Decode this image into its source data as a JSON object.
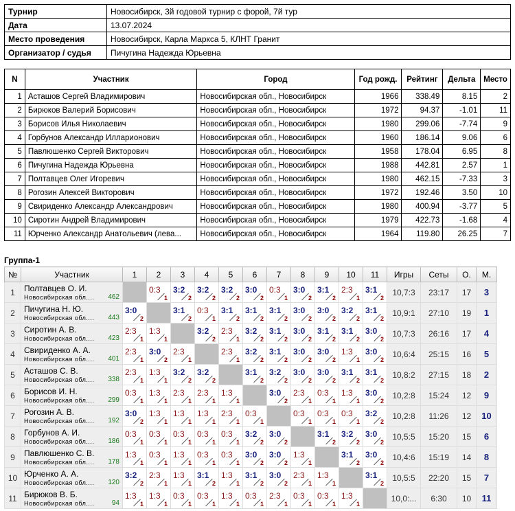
{
  "info": [
    {
      "label": "Турнир",
      "value": "Новосибирск, 3й годовой турнир с форой, 7й тур"
    },
    {
      "label": "Дата",
      "value": "13.07.2024"
    },
    {
      "label": "Место проведения",
      "value": "Новосибирск, Карла Маркса 5, КЛНТ Гранит"
    },
    {
      "label": "Организатор / судья",
      "value": "Пичугина Надежда Юрьевна"
    }
  ],
  "participants": {
    "headers": [
      "N",
      "Участник",
      "Город",
      "Год рожд.",
      "Рейтинг",
      "Дельта",
      "Место"
    ],
    "rows": [
      [
        "1",
        "Асташов Сергей Владимирович",
        "Новосибирская обл., Новосибирск",
        "1966",
        "338.49",
        "8.15",
        "2"
      ],
      [
        "2",
        "Бирюков Валерий Борисович",
        "Новосибирская обл., Новосибирск",
        "1972",
        "94.37",
        "-1.01",
        "11"
      ],
      [
        "3",
        "Борисов Илья Николаевич",
        "Новосибирская обл., Новосибирск",
        "1980",
        "299.06",
        "-7.74",
        "9"
      ],
      [
        "4",
        "Горбунов Александр Илларионович",
        "Новосибирская обл., Новосибирск",
        "1960",
        "186.14",
        "9.06",
        "6"
      ],
      [
        "5",
        "Павлюшенко Сергей Викторович",
        "Новосибирская обл., Новосибирск",
        "1958",
        "178.04",
        "6.95",
        "8"
      ],
      [
        "6",
        "Пичугина Надежда Юрьевна",
        "Новосибирская обл., Новосибирск",
        "1988",
        "442.81",
        "2.57",
        "1"
      ],
      [
        "7",
        "Полтавцев Олег Игоревич",
        "Новосибирская обл., Новосибирск",
        "1980",
        "462.15",
        "-7.33",
        "3"
      ],
      [
        "8",
        "Рогозин Алексей Викторович",
        "Новосибирская обл., Новосибирск",
        "1972",
        "192.46",
        "3.50",
        "10"
      ],
      [
        "9",
        "Свириденко Александр Александрович",
        "Новосибирская обл., Новосибирск",
        "1980",
        "400.94",
        "-3.77",
        "5"
      ],
      [
        "10",
        "Сиротин Андрей Владимирович",
        "Новосибирская обл., Новосибирск",
        "1979",
        "422.73",
        "-1.68",
        "4"
      ],
      [
        "11",
        "Юрченко Александр Анатольевич (лева...",
        "Новосибирская обл., Новосибирск",
        "1964",
        "119.80",
        "26.25",
        "7"
      ]
    ]
  },
  "group": {
    "title": "Группа-1",
    "headers": [
      "№",
      "Участник",
      "1",
      "2",
      "3",
      "4",
      "5",
      "6",
      "7",
      "8",
      "9",
      "10",
      "11",
      "Игры",
      "Сеты",
      "О.",
      "М."
    ],
    "rows": [
      {
        "n": "1",
        "name": "Полтавцев О. И.",
        "region": "Новосибирская обл....",
        "rating": "462",
        "res": [
          null,
          [
            "0:3",
            "1"
          ],
          [
            "3:2",
            "2"
          ],
          [
            "3:2",
            "2"
          ],
          [
            "3:2",
            "2"
          ],
          [
            "3:0",
            "2"
          ],
          [
            "0:3",
            "1"
          ],
          [
            "3:0",
            "2"
          ],
          [
            "3:1",
            "2"
          ],
          [
            "2:3",
            "1"
          ],
          [
            "3:1",
            "2"
          ]
        ],
        "games": "10,7:3",
        "sets": "23:17",
        "pts": "17",
        "place": "3"
      },
      {
        "n": "2",
        "name": "Пичугина Н. Ю.",
        "region": "Новосибирская обл....",
        "rating": "443",
        "res": [
          [
            "3:0",
            "2"
          ],
          null,
          [
            "3:1",
            "2"
          ],
          [
            "0:3",
            "1"
          ],
          [
            "3:1",
            "2"
          ],
          [
            "3:1",
            "2"
          ],
          [
            "3:1",
            "2"
          ],
          [
            "3:0",
            "2"
          ],
          [
            "3:0",
            "2"
          ],
          [
            "3:2",
            "2"
          ],
          [
            "3:1",
            "2"
          ]
        ],
        "games": "10,9:1",
        "sets": "27:10",
        "pts": "19",
        "place": "1"
      },
      {
        "n": "3",
        "name": "Сиротин А. В.",
        "region": "Новосибирская обл....",
        "rating": "423",
        "res": [
          [
            "2:3",
            "1"
          ],
          [
            "1:3",
            "1"
          ],
          null,
          [
            "3:2",
            "2"
          ],
          [
            "2:3",
            "1"
          ],
          [
            "3:2",
            "2"
          ],
          [
            "3:1",
            "2"
          ],
          [
            "3:0",
            "2"
          ],
          [
            "3:1",
            "2"
          ],
          [
            "3:1",
            "2"
          ],
          [
            "3:0",
            "2"
          ]
        ],
        "games": "10,7:3",
        "sets": "26:16",
        "pts": "17",
        "place": "4"
      },
      {
        "n": "4",
        "name": "Свириденко А. А.",
        "region": "Новосибирская обл....",
        "rating": "401",
        "res": [
          [
            "2:3",
            "1"
          ],
          [
            "3:0",
            "2"
          ],
          [
            "2:3",
            "1"
          ],
          null,
          [
            "2:3",
            "1"
          ],
          [
            "3:2",
            "2"
          ],
          [
            "3:1",
            "2"
          ],
          [
            "3:0",
            "2"
          ],
          [
            "3:0",
            "2"
          ],
          [
            "1:3",
            "1"
          ],
          [
            "3:0",
            "2"
          ]
        ],
        "games": "10,6:4",
        "sets": "25:15",
        "pts": "16",
        "place": "5"
      },
      {
        "n": "5",
        "name": "Асташов С. В.",
        "region": "Новосибирская обл....",
        "rating": "338",
        "res": [
          [
            "2:3",
            "1"
          ],
          [
            "1:3",
            "1"
          ],
          [
            "3:2",
            "2"
          ],
          [
            "3:2",
            "2"
          ],
          null,
          [
            "3:1",
            "2"
          ],
          [
            "3:2",
            "2"
          ],
          [
            "3:0",
            "2"
          ],
          [
            "3:0",
            "2"
          ],
          [
            "3:1",
            "2"
          ],
          [
            "3:1",
            "2"
          ]
        ],
        "games": "10,8:2",
        "sets": "27:15",
        "pts": "18",
        "place": "2"
      },
      {
        "n": "6",
        "name": "Борисов И. Н.",
        "region": "Новосибирская обл....",
        "rating": "299",
        "res": [
          [
            "0:3",
            "1"
          ],
          [
            "1:3",
            "1"
          ],
          [
            "2:3",
            "1"
          ],
          [
            "2:3",
            "1"
          ],
          [
            "1:3",
            "1"
          ],
          null,
          [
            "3:0",
            "2"
          ],
          [
            "2:3",
            "1"
          ],
          [
            "0:3",
            "1"
          ],
          [
            "1:3",
            "1"
          ],
          [
            "3:0",
            "2"
          ]
        ],
        "games": "10,2:8",
        "sets": "15:24",
        "pts": "12",
        "place": "9"
      },
      {
        "n": "7",
        "name": "Рогозин А. В.",
        "region": "Новосибирская обл....",
        "rating": "192",
        "res": [
          [
            "3:0",
            "2"
          ],
          [
            "1:3",
            "1"
          ],
          [
            "1:3",
            "1"
          ],
          [
            "1:3",
            "1"
          ],
          [
            "2:3",
            "1"
          ],
          [
            "0:3",
            "1"
          ],
          null,
          [
            "0:3",
            "1"
          ],
          [
            "0:3",
            "1"
          ],
          [
            "0:3",
            "1"
          ],
          [
            "3:2",
            "2"
          ]
        ],
        "games": "10,2:8",
        "sets": "11:26",
        "pts": "12",
        "place": "10"
      },
      {
        "n": "8",
        "name": "Горбунов А. И.",
        "region": "Новосибирская обл....",
        "rating": "186",
        "res": [
          [
            "0:3",
            "1"
          ],
          [
            "0:3",
            "1"
          ],
          [
            "0:3",
            "1"
          ],
          [
            "0:3",
            "1"
          ],
          [
            "0:3",
            "1"
          ],
          [
            "3:2",
            "2"
          ],
          [
            "3:0",
            "2"
          ],
          null,
          [
            "3:1",
            "2"
          ],
          [
            "3:2",
            "2"
          ],
          [
            "3:0",
            "2"
          ]
        ],
        "games": "10,5:5",
        "sets": "15:20",
        "pts": "15",
        "place": "6"
      },
      {
        "n": "9",
        "name": "Павлюшенко С. В.",
        "region": "Новосибирская обл....",
        "rating": "178",
        "res": [
          [
            "1:3",
            "1"
          ],
          [
            "0:3",
            "1"
          ],
          [
            "1:3",
            "1"
          ],
          [
            "0:3",
            "1"
          ],
          [
            "0:3",
            "1"
          ],
          [
            "3:0",
            "2"
          ],
          [
            "3:0",
            "2"
          ],
          [
            "1:3",
            "1"
          ],
          null,
          [
            "3:1",
            "2"
          ],
          [
            "3:0",
            "2"
          ]
        ],
        "games": "10,4:6",
        "sets": "15:19",
        "pts": "14",
        "place": "8"
      },
      {
        "n": "10",
        "name": "Юрченко А. А.",
        "region": "Новосибирская обл....",
        "rating": "120",
        "res": [
          [
            "3:2",
            "2"
          ],
          [
            "2:3",
            "1"
          ],
          [
            "1:3",
            "1"
          ],
          [
            "3:1",
            "2"
          ],
          [
            "1:3",
            "1"
          ],
          [
            "3:1",
            "2"
          ],
          [
            "3:0",
            "2"
          ],
          [
            "2:3",
            "1"
          ],
          [
            "1:3",
            "1"
          ],
          null,
          [
            "3:1",
            "2"
          ]
        ],
        "games": "10,5:5",
        "sets": "22:20",
        "pts": "15",
        "place": "7"
      },
      {
        "n": "11",
        "name": "Бирюков В. Б.",
        "region": "Новосибирская обл....",
        "rating": "94",
        "res": [
          [
            "1:3",
            "1"
          ],
          [
            "1:3",
            "1"
          ],
          [
            "0:3",
            "1"
          ],
          [
            "0:3",
            "1"
          ],
          [
            "1:3",
            "1"
          ],
          [
            "0:3",
            "1"
          ],
          [
            "2:3",
            "1"
          ],
          [
            "0:3",
            "1"
          ],
          [
            "0:3",
            "1"
          ],
          [
            "1:3",
            "1"
          ],
          null
        ],
        "games": "10,0:...",
        "sets": "6:30",
        "pts": "10",
        "place": "11"
      }
    ]
  },
  "colors": {
    "win": "#1a237e",
    "loss": "#8b1a1a",
    "rating": "#1a7a1a",
    "diagonal": "#c0c0c0"
  }
}
